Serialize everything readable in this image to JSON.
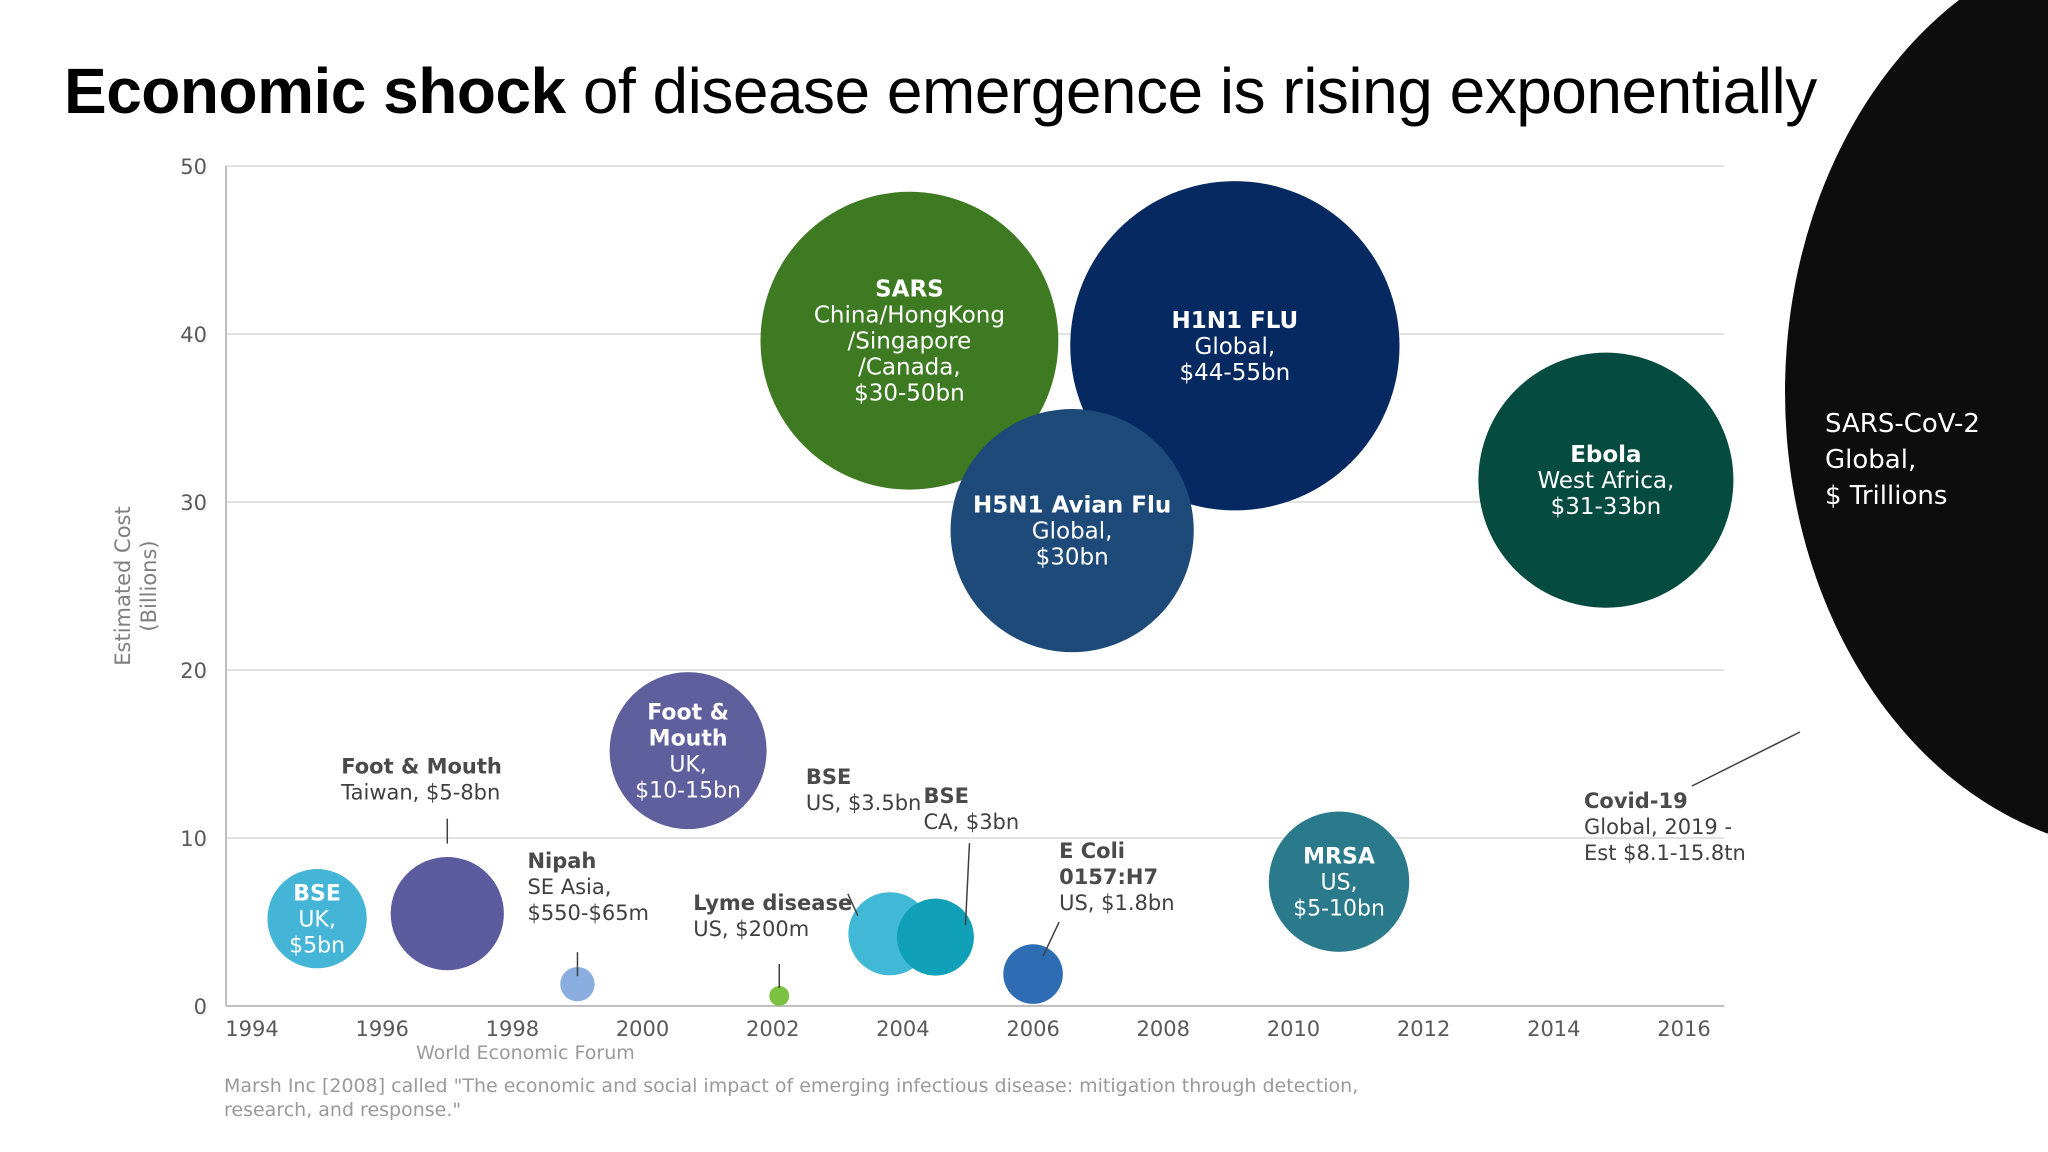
{
  "title": {
    "bold": "Economic shock",
    "rest": " of disease emergence is rising exponentially"
  },
  "source_label": "World Economic Forum",
  "citation": "Marsh Inc [2008] called \"The economic and social impact of emerging infectious disease: mitigation through detection, research, and response.\"",
  "chart_data": {
    "type": "scatter",
    "subtype": "bubble",
    "title": "Economic shock of disease emergence is rising exponentially",
    "xlabel": "",
    "ylabel": "Estimated Cost (Billions)",
    "ylabel_lines": [
      "Estimated Cost",
      "(Billions)"
    ],
    "xlim": [
      1994,
      2016
    ],
    "ylim": [
      0,
      50
    ],
    "x_ticks": [
      1994,
      1996,
      1998,
      2000,
      2002,
      2004,
      2006,
      2008,
      2010,
      2012,
      2014,
      2016
    ],
    "y_ticks": [
      0,
      10,
      20,
      30,
      40,
      50
    ],
    "grid": true,
    "legend": "none",
    "series": [
      {
        "name": "BSE UK",
        "x": 1995,
        "y": 5.2,
        "size": 5,
        "color": "#44b5d6",
        "label_inside": true,
        "lines": [
          "BSE",
          "UK,",
          "$5bn"
        ],
        "bold_lines": 1
      },
      {
        "name": "Foot & Mouth Taiwan",
        "x": 1997,
        "y": 5.5,
        "size": 6.5,
        "color": "#5b5b9e",
        "label_inside": false,
        "lines": [
          "Foot & Mouth",
          "Taiwan, $5-8bn"
        ],
        "bold_lines": 1
      },
      {
        "name": "Nipah",
        "x": 1999,
        "y": 1.3,
        "size": 0.6,
        "color": "#8aaee0",
        "label_inside": false,
        "lines": [
          "Nipah",
          "SE Asia,",
          "$550-$65m"
        ],
        "bold_lines": 1
      },
      {
        "name": "Foot & Mouth UK",
        "x": 2000.7,
        "y": 15.2,
        "size": 12.5,
        "color": "#5f5f9e",
        "label_inside": true,
        "lines": [
          "Foot &",
          "Mouth",
          "UK,",
          "$10-15bn"
        ],
        "bold_lines": 2
      },
      {
        "name": "Lyme disease",
        "x": 2002.1,
        "y": 0.6,
        "size": 0.2,
        "color": "#7dc142",
        "label_inside": false,
        "lines": [
          "Lyme disease",
          "US, $200m"
        ],
        "bold_lines": 1
      },
      {
        "name": "BSE US",
        "x": 2003.8,
        "y": 4.3,
        "size": 3.5,
        "color": "#41b8d5",
        "label_inside": false,
        "lines": [
          "BSE",
          "US, $3.5bn"
        ],
        "bold_lines": 1
      },
      {
        "name": "BSE CA",
        "x": 2004.5,
        "y": 4.1,
        "size": 3,
        "color": "#10a0b8",
        "label_inside": false,
        "lines": [
          "BSE",
          "CA, $3bn"
        ],
        "bold_lines": 1
      },
      {
        "name": "E Coli 0157:H7",
        "x": 2006,
        "y": 1.9,
        "size": 1.8,
        "color": "#2e6db4",
        "label_inside": false,
        "lines": [
          "E Coli",
          "0157:H7",
          "US, $1.8bn"
        ],
        "bold_lines": 2
      },
      {
        "name": "SARS",
        "x": 2004.1,
        "y": 39.6,
        "size": 45,
        "color": "#3e7a22",
        "label_inside": true,
        "lines": [
          "SARS",
          "China/HongKong",
          "/Singapore",
          "/Canada,",
          "$30-50bn"
        ],
        "bold_lines": 1
      },
      {
        "name": "H1N1 FLU",
        "x": 2009.1,
        "y": 39.3,
        "size": 55,
        "color": "#052960",
        "label_inside": true,
        "lines": [
          "H1N1 FLU",
          "Global,",
          "$44-55bn"
        ],
        "bold_lines": 1
      },
      {
        "name": "H5N1 Avian Flu",
        "x": 2006.6,
        "y": 28.3,
        "size": 30,
        "color": "#1e4a7a",
        "label_inside": true,
        "lines": [
          "H5N1 Avian Flu",
          "Global,",
          "$30bn"
        ],
        "bold_lines": 1
      },
      {
        "name": "MRSA",
        "x": 2010.7,
        "y": 7.4,
        "size": 10,
        "color": "#2a7a8c",
        "label_inside": true,
        "lines": [
          "MRSA",
          "US,",
          "$5-10bn"
        ],
        "bold_lines": 1
      },
      {
        "name": "Ebola",
        "x": 2014.8,
        "y": 31.3,
        "size": 33,
        "color": "#054b3f",
        "label_inside": true,
        "lines": [
          "Ebola",
          "West Africa,",
          "$31-33bn"
        ],
        "bold_lines": 1
      }
    ],
    "annotations": [
      {
        "text_lines": [
          "Covid-19",
          "Global, 2019 -",
          "Est $8.1-15.8tn"
        ],
        "bold_lines": 1
      },
      {
        "text_lines": [
          "SARS-CoV-2",
          "Global,",
          "$ Trillions"
        ],
        "bold_lines": 0
      }
    ]
  },
  "colors": {
    "axis": "#bfbfbf",
    "grid": "#d9d9d9",
    "tick_text": "#595959",
    "label_text": "#404040",
    "covid_fill": "#0d0d0d"
  }
}
